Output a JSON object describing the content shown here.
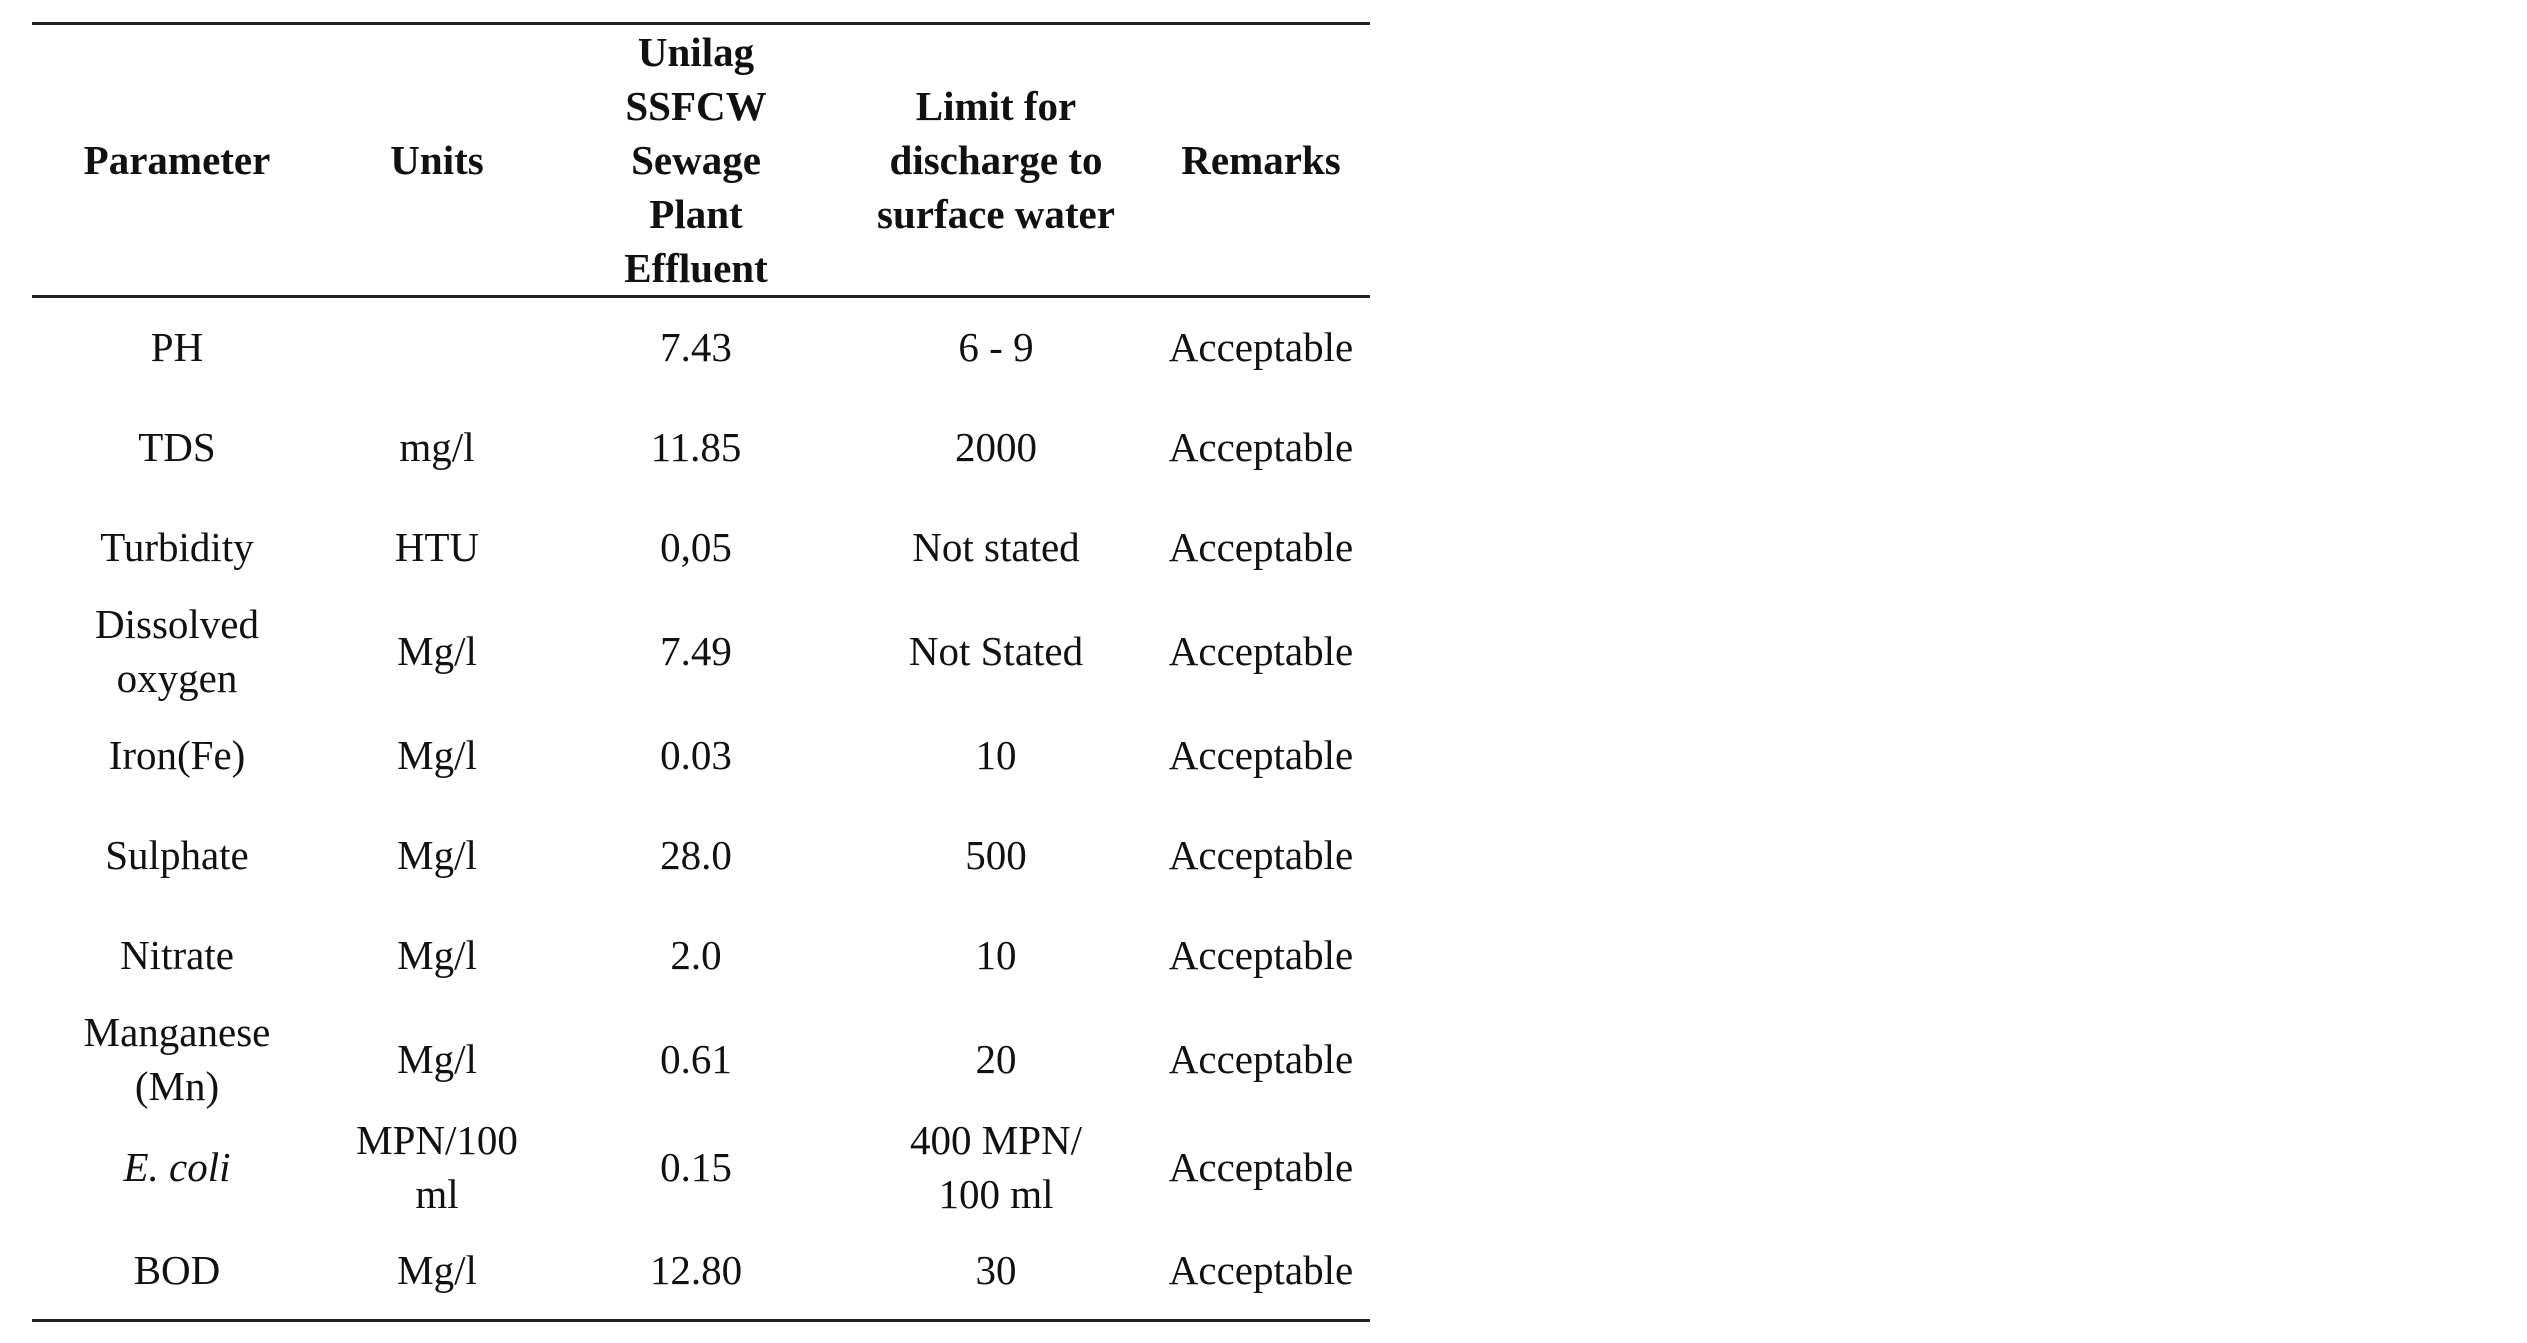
{
  "table": {
    "headers": [
      "Parameter",
      "Units",
      "Unilag\nSSFCW\nSewage\nPlant\nEffluent",
      "Limit for\ndischarge to\nsurface water",
      "Remarks"
    ],
    "rows": [
      {
        "parameter": "PH",
        "units": "",
        "effluent": "7.43",
        "limit": "6 - 9",
        "remarks": "Acceptable"
      },
      {
        "parameter": "TDS",
        "units": "mg/l",
        "effluent": "11.85",
        "limit": "2000",
        "remarks": "Acceptable"
      },
      {
        "parameter": "Turbidity",
        "units": "HTU",
        "effluent": "0,05",
        "limit": "Not stated",
        "remarks": "Acceptable"
      },
      {
        "parameter": "Dissolved\noxygen",
        "units": "Mg/l",
        "effluent": "7.49",
        "limit": "Not Stated",
        "remarks": "Acceptable"
      },
      {
        "parameter": "Iron(Fe)",
        "units": "Mg/l",
        "effluent": "0.03",
        "limit": "10",
        "remarks": "Acceptable"
      },
      {
        "parameter": "Sulphate",
        "units": "Mg/l",
        "effluent": "28.0",
        "limit": "500",
        "remarks": "Acceptable"
      },
      {
        "parameter": "Nitrate",
        "units": "Mg/l",
        "effluent": "2.0",
        "limit": "10",
        "remarks": "Acceptable"
      },
      {
        "parameter": "Manganese\n(Mn)",
        "units": "Mg/l",
        "effluent": "0.61",
        "limit": "20",
        "remarks": "Acceptable"
      },
      {
        "parameter": "E. coli",
        "units": "MPN/100\nml",
        "effluent": "0.15",
        "limit": "400 MPN/\n100 ml",
        "remarks": "Acceptable"
      },
      {
        "parameter": "BOD",
        "units": "Mg/l",
        "effluent": "12.80",
        "limit": "30",
        "remarks": "Acceptable"
      }
    ]
  }
}
